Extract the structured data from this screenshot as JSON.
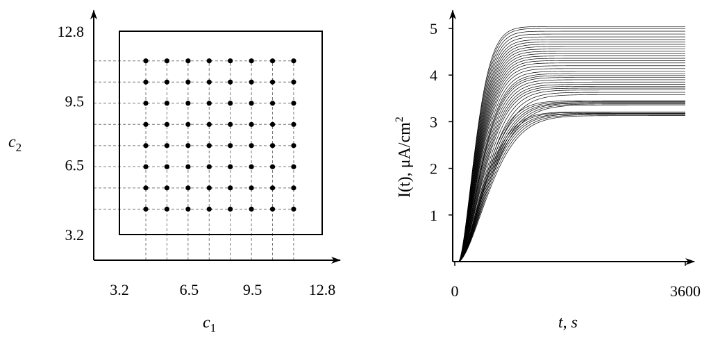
{
  "chart_data": [
    {
      "type": "scatter",
      "xlabel": "c",
      "xlabel_sub": "1",
      "ylabel": "c",
      "ylabel_sub": "2",
      "xlim": [
        2.0,
        13.5
      ],
      "ylim": [
        2.0,
        13.8
      ],
      "xticks": [
        3.2,
        6.5,
        9.5,
        12.8
      ],
      "xtick_labels": [
        "3.2",
        "6.5",
        "9.5",
        "12.8"
      ],
      "yticks": [
        3.2,
        6.5,
        9.5,
        12.8
      ],
      "ytick_labels": [
        "3.2",
        "6.5",
        "9.5",
        "12.8"
      ],
      "domain_box": {
        "x": [
          3.2,
          12.8
        ],
        "y": [
          3.2,
          12.8
        ]
      },
      "grid_x": [
        4.45,
        5.45,
        6.45,
        7.45,
        8.45,
        9.45,
        10.45,
        11.45
      ],
      "grid_y": [
        4.4,
        5.4,
        6.4,
        7.4,
        8.4,
        9.4,
        10.4,
        11.4
      ],
      "grid": "dashed guide lines at each point row and column",
      "points_note": "8 x 8 grid of points at every combination of grid_x and grid_y"
    },
    {
      "type": "line",
      "xlabel": "t, s",
      "ylabel": "I(t), μA/cm",
      "ylabel_sup": "2",
      "xlim": [
        0,
        3600
      ],
      "ylim": [
        0,
        5.1
      ],
      "xticks": [
        0,
        3600
      ],
      "xtick_labels": [
        "0",
        "3600"
      ],
      "yticks": [
        1,
        2,
        3,
        4,
        5
      ],
      "ytick_labels": [
        "1",
        "2",
        "3",
        "4",
        "5"
      ],
      "curve_model": "I(t) = I_inf * (1 - exp(-((t - 60)/tau)^1.6)), t > 60",
      "series": [
        {
          "I_inf": 3.13,
          "tau": 620
        },
        {
          "I_inf": 3.15,
          "tau": 600
        },
        {
          "I_inf": 3.17,
          "tau": 580
        },
        {
          "I_inf": 3.18,
          "tau": 560
        },
        {
          "I_inf": 3.2,
          "tau": 540
        },
        {
          "I_inf": 3.21,
          "tau": 520
        },
        {
          "I_inf": 3.36,
          "tau": 610
        },
        {
          "I_inf": 3.38,
          "tau": 590
        },
        {
          "I_inf": 3.4,
          "tau": 570
        },
        {
          "I_inf": 3.41,
          "tau": 550
        },
        {
          "I_inf": 3.43,
          "tau": 530
        },
        {
          "I_inf": 3.45,
          "tau": 510
        },
        {
          "I_inf": 3.58,
          "tau": 560
        },
        {
          "I_inf": 3.63,
          "tau": 540
        },
        {
          "I_inf": 3.68,
          "tau": 520
        },
        {
          "I_inf": 3.72,
          "tau": 500
        },
        {
          "I_inf": 3.76,
          "tau": 490
        },
        {
          "I_inf": 3.8,
          "tau": 480
        },
        {
          "I_inf": 3.85,
          "tau": 470
        },
        {
          "I_inf": 3.9,
          "tau": 460
        },
        {
          "I_inf": 3.95,
          "tau": 450
        },
        {
          "I_inf": 3.99,
          "tau": 445
        },
        {
          "I_inf": 4.03,
          "tau": 440
        },
        {
          "I_inf": 4.08,
          "tau": 430
        },
        {
          "I_inf": 4.14,
          "tau": 420
        },
        {
          "I_inf": 4.2,
          "tau": 415
        },
        {
          "I_inf": 4.26,
          "tau": 410
        },
        {
          "I_inf": 4.31,
          "tau": 405
        },
        {
          "I_inf": 4.36,
          "tau": 400
        },
        {
          "I_inf": 4.41,
          "tau": 395
        },
        {
          "I_inf": 4.46,
          "tau": 390
        },
        {
          "I_inf": 4.51,
          "tau": 385
        },
        {
          "I_inf": 4.56,
          "tau": 380
        },
        {
          "I_inf": 4.61,
          "tau": 375
        },
        {
          "I_inf": 4.66,
          "tau": 370
        },
        {
          "I_inf": 4.71,
          "tau": 365
        },
        {
          "I_inf": 4.76,
          "tau": 360
        },
        {
          "I_inf": 4.82,
          "tau": 355
        },
        {
          "I_inf": 4.88,
          "tau": 350
        },
        {
          "I_inf": 4.94,
          "tau": 345
        },
        {
          "I_inf": 5.0,
          "tau": 340
        },
        {
          "I_inf": 5.04,
          "tau": 335
        }
      ]
    }
  ]
}
